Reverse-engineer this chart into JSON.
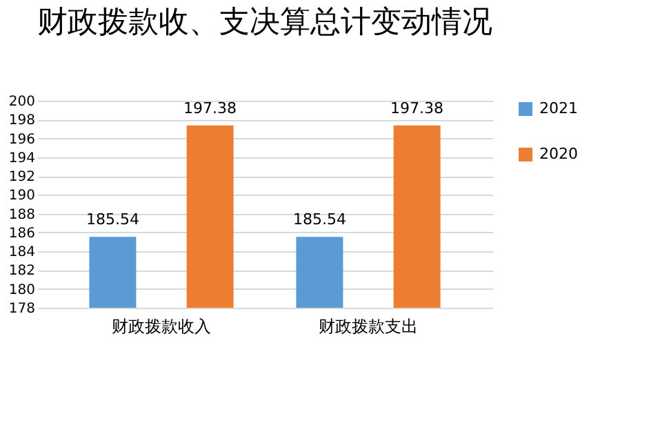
{
  "chart_data": {
    "type": "bar",
    "title": "财政拨款收、支决算总计变动情况",
    "categories": [
      "财政拨款收入",
      "财政拨款支出"
    ],
    "series": [
      {
        "name": "2021",
        "color": "#5b9bd5",
        "values": [
          185.54,
          185.54
        ]
      },
      {
        "name": "2020",
        "color": "#ed7d31",
        "values": [
          197.38,
          197.38
        ]
      }
    ],
    "ylim": [
      178,
      200
    ],
    "yticks": [
      178,
      180,
      182,
      184,
      186,
      188,
      190,
      192,
      194,
      196,
      198,
      200
    ],
    "grid": "y",
    "legend": "right",
    "data_labels": true
  }
}
